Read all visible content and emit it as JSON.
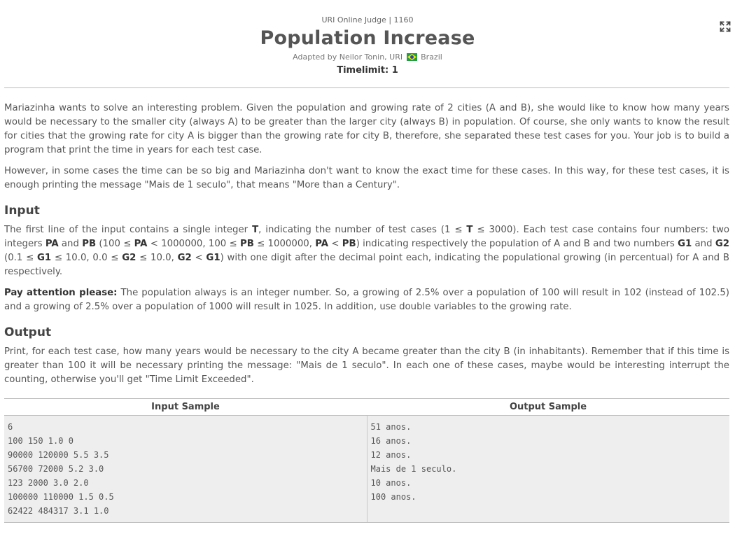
{
  "header": {
    "judge_line": "URI Online Judge | 1160",
    "title": "Population Increase",
    "adapted_prefix": "Adapted by Neilor Tonin, URI",
    "adapted_country": "Brazil",
    "timelimit": "Timelimit: 1"
  },
  "icons": {
    "expand": "fullscreen-expand-icon",
    "flag": "brazil-flag-icon"
  },
  "colors": {
    "divider": "#bdbdbd",
    "sample_bg": "#eeeeee",
    "text": "#555555",
    "flag_green": "#229e45",
    "flag_yellow": "#f8e509",
    "flag_blue": "#2b49a3"
  },
  "description": {
    "p1": "Mariazinha wants to solve an interesting problem. Given the population and growing rate of 2 cities (A and B), she would like to know how many years would be necessary to the smaller city (always A) to be greater than the larger city (always B) in population. Of course, she only wants to know the result for cities that the growing rate for city A is bigger than the growing rate for city B, therefore, she separated these test cases for you. Your job is to build a program that print the time in years for each test case.",
    "p2": "However, in some cases the time can be so big and Mariazinha don't want to know the exact time for these cases. In this way, for these test cases, it is enough printing the message \"Mais de 1 seculo\", that means \"More than a Century\"."
  },
  "input": {
    "heading": "Input",
    "p1": {
      "t1": "The first line of the input contains a single integer ",
      "b1": "T",
      "t2": ", indicating the number of test cases (1 ≤ ",
      "b2": "T",
      "t3": " ≤ 3000). Each test case contains four numbers: two integers ",
      "b3": "PA",
      "t4": " and ",
      "b4": "PB",
      "t5": " (100 ≤ ",
      "b5": "PA",
      "t6": " < 1000000, 100 ≤ ",
      "b6": "PB",
      "t7": " ≤ 1000000, ",
      "b7": "PA",
      "t8": " < ",
      "b8": "PB",
      "t9": ") indicating respectively the population of A and B and two numbers ",
      "b9": "G1",
      "t10": " and ",
      "b10": "G2",
      "t11": " (0.1 ≤ ",
      "b11": "G1",
      "t12": " ≤ 10.0, 0.0 ≤ ",
      "b12": "G2",
      "t13": " ≤ 10.0, ",
      "b13": "G2",
      "t14": " < ",
      "b14": "G1",
      "t15": ") with one digit after the decimal point each, indicating the populational growing (in percentual) for A and B respectively."
    },
    "p2_bold": "Pay attention please:",
    "p2_text": " The population always is an integer number. So, a growing of 2.5% over a population of 100 will result in 102 (instead of 102.5) and a growing of 2.5% over a population of 1000 will result in 1025. In addition, use double variables to the growing rate."
  },
  "output": {
    "heading": "Output",
    "p1": "Print, for each test case, how many years would be necessary to the city A became greater than the city B (in inhabitants). Remember that if this time is greater than 100 it will be necessary printing the message: \"Mais de 1 seculo\". In each one of these cases, maybe would be interesting interrupt the counting, otherwise you'll get \"Time Limit Exceeded\"."
  },
  "samples": {
    "input_header": "Input Sample",
    "output_header": "Output Sample",
    "input_lines": [
      "6",
      "100 150 1.0 0",
      "90000 120000 5.5 3.5",
      "56700 72000 5.2 3.0",
      "123 2000 3.0 2.0",
      "100000 110000 1.5 0.5",
      "62422 484317 3.1 1.0"
    ],
    "output_lines": [
      "51 anos.",
      "16 anos.",
      "12 anos.",
      "Mais de 1 seculo.",
      "10 anos.",
      "100 anos."
    ]
  }
}
